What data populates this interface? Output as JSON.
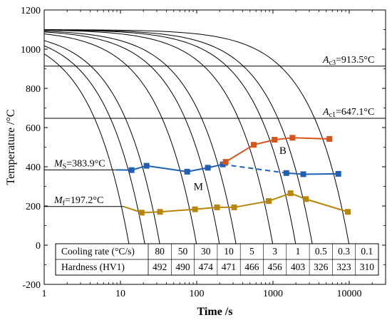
{
  "chart_data": {
    "type": "line",
    "xlabel": "Time /s",
    "ylabel": "Temperature /°C",
    "x_scale": "log",
    "xlim": [
      1,
      30000
    ],
    "ylim": [
      -200,
      1200
    ],
    "x_ticks": [
      {
        "value": 1,
        "label": "1"
      },
      {
        "value": 10,
        "label": "10"
      },
      {
        "value": 100,
        "label": "100"
      },
      {
        "value": 1000,
        "label": "1000"
      },
      {
        "value": 10000,
        "label": "10000"
      }
    ],
    "y_ticks": [
      {
        "value": -200,
        "label": "-200"
      },
      {
        "value": 0,
        "label": "0"
      },
      {
        "value": 200,
        "label": "200"
      },
      {
        "value": 400,
        "label": "400"
      },
      {
        "value": 600,
        "label": "600"
      },
      {
        "value": 800,
        "label": "800"
      },
      {
        "value": 1000,
        "label": "1000"
      },
      {
        "value": 1200,
        "label": "1200"
      }
    ],
    "reference_lines": [
      {
        "y": 913.5,
        "label_main": "A",
        "label_sub": "c3",
        "label_rest": "=913.5°C",
        "x_from": 1,
        "x_to": 30000
      },
      {
        "y": 647.1,
        "label_main": "A",
        "label_sub": "c1",
        "label_rest": "=647.1°C",
        "x_from": 1,
        "x_to": 30000
      },
      {
        "y": 383.9,
        "label_main": "M",
        "label_sub": "S",
        "label_rest": "=383.9°C",
        "x_from": 1,
        "x_to": 8.7
      },
      {
        "y": 197.2,
        "label_main": "M",
        "label_sub": "f",
        "label_rest": "=197.2°C",
        "x_from": 1,
        "x_to": 11
      }
    ],
    "cooling_curves": [
      {
        "rate": "80",
        "end_time": 13
      },
      {
        "rate": "50",
        "end_time": 21
      },
      {
        "rate": "30",
        "end_time": 33
      },
      {
        "rate": "10",
        "end_time": 100
      },
      {
        "rate": "5",
        "end_time": 200
      },
      {
        "rate": "3",
        "end_time": 330
      },
      {
        "rate": "1",
        "end_time": 1000
      },
      {
        "rate": "0.5",
        "end_time": 2000
      },
      {
        "rate": "0.3",
        "end_time": 3300
      },
      {
        "rate": "0.1",
        "end_time": 10000
      }
    ],
    "series": [
      {
        "name": "Ms",
        "color": "#1f5fb4",
        "segments": [
          {
            "style": "solid",
            "points": [
              [
                8.7,
                383.9
              ],
              [
                14,
                383
              ],
              [
                22,
                405
              ],
              [
                75,
                375
              ],
              [
                140,
                395
              ],
              [
                220,
                412
              ]
            ]
          },
          {
            "style": "dashed",
            "points": [
              [
                220,
                412
              ],
              [
                1500,
                368
              ]
            ]
          },
          {
            "style": "solid",
            "points": [
              [
                1500,
                368
              ],
              [
                2500,
                362
              ],
              [
                7200,
                364
              ]
            ]
          }
        ]
      },
      {
        "name": "Mf",
        "color": "#b8860b",
        "segments": [
          {
            "style": "solid",
            "points": [
              [
                11,
                197.2
              ],
              [
                19,
                166
              ],
              [
                33,
                170
              ],
              [
                95,
                183
              ],
              [
                185,
                193
              ],
              [
                310,
                193
              ],
              [
                880,
                225
              ],
              [
                1700,
                265
              ],
              [
                2700,
                235
              ],
              [
                9600,
                170
              ]
            ]
          }
        ]
      },
      {
        "name": "B",
        "color": "#d9541a",
        "segments": [
          {
            "style": "solid",
            "points": [
              [
                210,
                418
              ],
              [
                240,
                425
              ],
              [
                560,
                512
              ],
              [
                1050,
                538
              ],
              [
                1800,
                548
              ],
              [
                5500,
                542
              ]
            ]
          }
        ]
      }
    ],
    "region_labels": [
      {
        "text": "B",
        "x": 1350,
        "y": 465
      },
      {
        "text": "M",
        "x": 105,
        "y": 282
      }
    ],
    "table": {
      "rows": [
        {
          "header": "Cooling rate (°C/s)",
          "values": [
            "80",
            "50",
            "30",
            "10",
            "5",
            "3",
            "1",
            "0.5",
            "0.3",
            "0.1"
          ]
        },
        {
          "header": "Hardness (HV1)",
          "values": [
            "492",
            "490",
            "474",
            "471",
            "466",
            "456",
            "403",
            "326",
            "323",
            "310"
          ]
        }
      ]
    }
  }
}
